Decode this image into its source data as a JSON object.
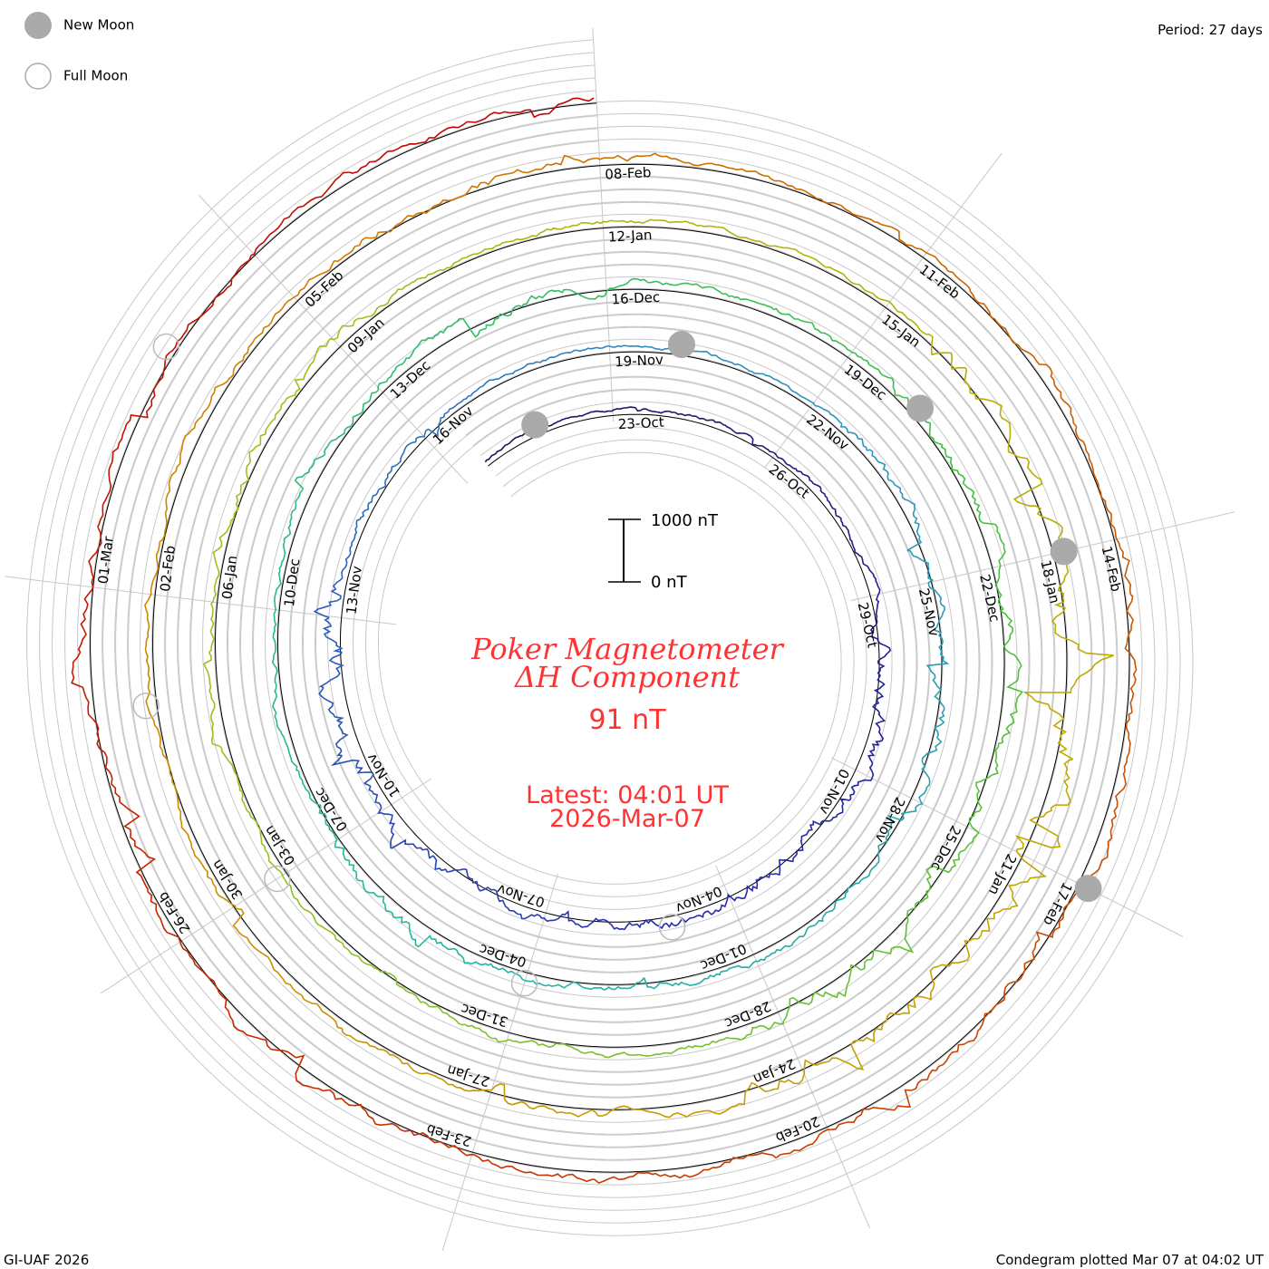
{
  "legend": {
    "new_moon": "New Moon",
    "full_moon": "Full Moon"
  },
  "period_label": "Period: 27 days",
  "footer_left": "GI-UAF 2026",
  "footer_right": "Condegram plotted Mar 07 at 04:02 UT",
  "chart_data": {
    "type": "line",
    "subtype": "condegram-spiral",
    "title": "Poker Magnetometer",
    "subtitle": "ΔH Component",
    "current_value": "91 nT",
    "latest_time": "Latest: 04:01 UT",
    "latest_date": "2026-Mar-07",
    "period_days": 27,
    "scale": {
      "top_label": "1000 nT",
      "bottom_label": "0 nT",
      "top_value": 1000,
      "bottom_value": 0
    },
    "start_day_offset": -2.5,
    "end_day_offset": 135,
    "date_labels": [
      "23-Oct",
      "26-Oct",
      "29-Oct",
      "01-Nov",
      "04-Nov",
      "07-Nov",
      "10-Nov",
      "13-Nov",
      "16-Nov",
      "19-Nov",
      "22-Nov",
      "25-Nov",
      "28-Nov",
      "01-Dec",
      "04-Dec",
      "07-Dec",
      "10-Dec",
      "13-Dec",
      "16-Dec",
      "19-Dec",
      "22-Dec",
      "25-Dec",
      "28-Dec",
      "31-Dec",
      "03-Jan",
      "06-Jan",
      "09-Jan",
      "12-Jan",
      "15-Jan",
      "18-Jan",
      "21-Jan",
      "24-Jan",
      "27-Jan",
      "30-Jan",
      "02-Feb",
      "05-Feb",
      "08-Feb",
      "11-Feb",
      "14-Feb",
      "17-Feb",
      "20-Feb",
      "23-Feb",
      "26-Feb",
      "01-Mar"
    ],
    "date_label_step_days": 3,
    "new_moons_day_offset": [
      -1.4,
      28,
      58,
      87,
      117
    ],
    "full_moons_day_offset": [
      13,
      42,
      72,
      101,
      131
    ],
    "activity_nT_per_3day": [
      100,
      150,
      200,
      600,
      500,
      450,
      500,
      900,
      300,
      150,
      150,
      400,
      600,
      350,
      300,
      500,
      250,
      300,
      450,
      250,
      500,
      600,
      700,
      300,
      250,
      300,
      400,
      250,
      200,
      700,
      1200,
      900,
      400,
      350,
      250,
      300,
      400,
      250,
      300,
      450,
      500,
      400,
      500,
      450,
      350,
      300
    ],
    "color_stops": [
      "#1a1560",
      "#2a2ab0",
      "#2f8fc0",
      "#20b8a0",
      "#40c040",
      "#a0c020",
      "#c0a800",
      "#d08000",
      "#c84000",
      "#c00000"
    ]
  }
}
